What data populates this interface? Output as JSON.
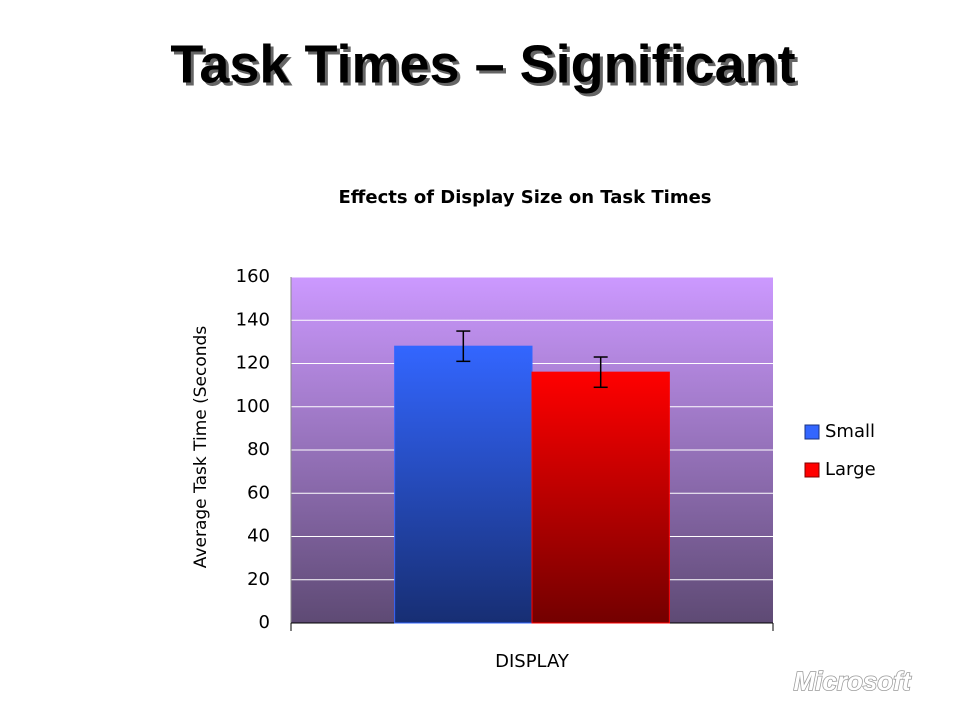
{
  "slide": {
    "title": "Task Times – Significant",
    "logo": "Microsoft"
  },
  "chart_data": {
    "type": "bar",
    "title": "Effects of Display Size on Task Times",
    "y_label": "Average Task Time (Seconds",
    "x_label": "DISPLAY",
    "categories": [
      null
    ],
    "series": [
      {
        "name": "Small",
        "color": "#3366ff",
        "values": [
          128
        ],
        "errors": [
          7
        ]
      },
      {
        "name": "Large",
        "color": "#ff0000",
        "values": [
          116
        ],
        "errors": [
          7
        ]
      }
    ],
    "ylim": [
      0,
      160
    ],
    "yticks": [
      0,
      20,
      40,
      60,
      80,
      100,
      120,
      140,
      160
    ],
    "grid": true,
    "legend": "right"
  }
}
